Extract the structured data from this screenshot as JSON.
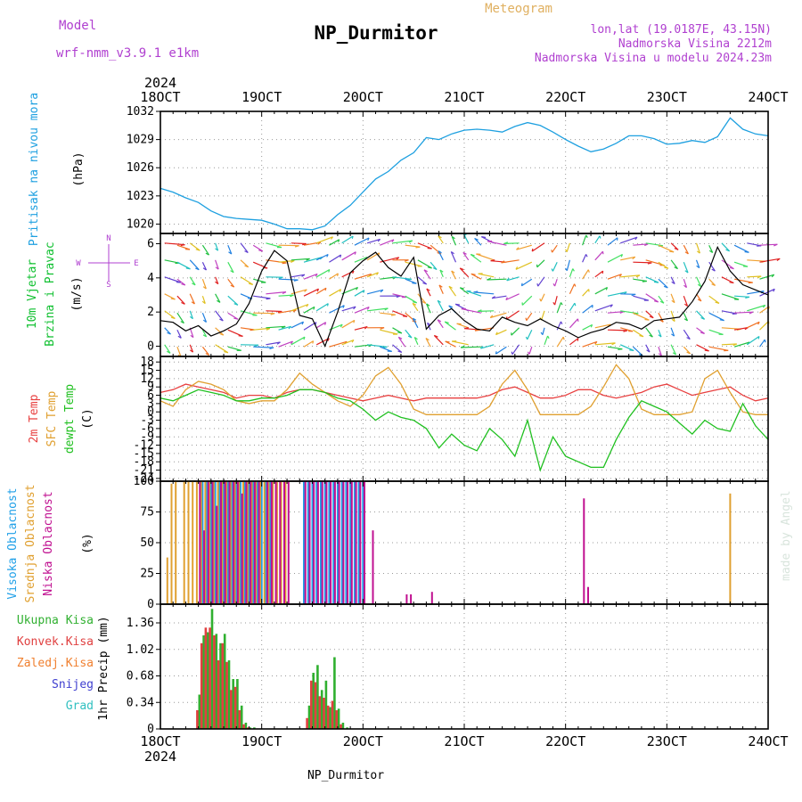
{
  "header": {
    "model_label": "Model",
    "model_name": "wrf-nmm_v3.9.1 e1km",
    "title": "NP_Durmitor",
    "subtitle": "Meteogram",
    "coords": "lon,lat (19.0187E, 43.15N)",
    "altitude": "Nadmorska Visina 2212m",
    "model_altitude": "Nadmorska Visina u modelu 2024.23m",
    "footer": "NP_Durmitor",
    "watermark": "made by Angel"
  },
  "colors": {
    "pressure": "#1ea0e0",
    "wind_title": "#10c030",
    "temp2m": "#e84040",
    "sfctemp": "#e0a030",
    "dewpt": "#20c020",
    "high_cloud": "#20a0e8",
    "mid_cloud": "#e0a030",
    "low_cloud": "#c01090",
    "total_precip": "#30b030",
    "conv_precip": "#e04040",
    "frozen": "#f08030",
    "snow": "#4040d0",
    "graupel": "#30c0c0",
    "header_purple": "#b040d0",
    "subtitle_orange": "#e0b060"
  },
  "chart_data": [
    {
      "type": "line",
      "panel": "pressure",
      "ylabel": [
        "Pritisak na nivou mora",
        "(hPa)"
      ],
      "yticks": [
        1020,
        1023,
        1026,
        1029,
        1032
      ],
      "ylim": [
        1019,
        1032
      ],
      "x_start_label": "2024",
      "xticks": [
        "18OCT",
        "19OCT",
        "20OCT",
        "21OCT",
        "22OCT",
        "23OCT",
        "24OCT"
      ],
      "x_hours": [
        0,
        3,
        6,
        9,
        12,
        15,
        18,
        21,
        24,
        27,
        30,
        33,
        36,
        39,
        42,
        45,
        48,
        51,
        54,
        57,
        60,
        63,
        66,
        69,
        72,
        75,
        78,
        81,
        84,
        87,
        90,
        93,
        96,
        99,
        102,
        105,
        108,
        111,
        114,
        117,
        120,
        123,
        126,
        129,
        132,
        135,
        138,
        141,
        144
      ],
      "values": [
        1023.8,
        1023.4,
        1022.8,
        1022.3,
        1021.4,
        1020.8,
        1020.6,
        1020.5,
        1020.4,
        1020.0,
        1019.5,
        1019.5,
        1019.4,
        1019.8,
        1021.0,
        1022.0,
        1023.4,
        1024.8,
        1025.6,
        1026.8,
        1027.6,
        1029.2,
        1029.0,
        1029.6,
        1030.0,
        1030.1,
        1030.0,
        1029.8,
        1030.4,
        1030.8,
        1030.5,
        1029.8,
        1029.0,
        1028.3,
        1027.7,
        1028.0,
        1028.6,
        1029.4,
        1029.4,
        1029.1,
        1028.5,
        1028.6,
        1028.9,
        1028.7,
        1029.3,
        1031.3,
        1030.1,
        1029.6,
        1029.4
      ]
    },
    {
      "type": "line",
      "panel": "wind",
      "ylabel": [
        "10m Vjetar",
        "Brzina i Pravac",
        "(m/s)"
      ],
      "compass": {
        "n": "N",
        "e": "E",
        "s": "S",
        "w": "W"
      },
      "yticks": [
        0,
        2,
        4,
        6
      ],
      "ylim": [
        -0.6,
        6.6
      ],
      "x_hours": [
        0,
        3,
        6,
        9,
        12,
        15,
        18,
        21,
        24,
        27,
        30,
        33,
        36,
        39,
        42,
        45,
        48,
        51,
        54,
        57,
        60,
        63,
        66,
        69,
        72,
        75,
        78,
        81,
        84,
        87,
        90,
        93,
        96,
        99,
        102,
        105,
        108,
        111,
        114,
        117,
        120,
        123,
        126,
        129,
        132,
        135,
        138,
        141,
        144
      ],
      "speed": [
        1.5,
        1.4,
        0.9,
        1.2,
        0.6,
        0.9,
        1.3,
        2.5,
        4.4,
        5.6,
        5.0,
        1.8,
        1.6,
        0.0,
        2.0,
        4.3,
        5.0,
        5.5,
        4.6,
        4.1,
        5.2,
        1.0,
        1.8,
        2.2,
        1.5,
        1.0,
        0.9,
        1.7,
        1.4,
        1.2,
        1.6,
        1.2,
        0.9,
        0.5,
        0.8,
        1.0,
        1.4,
        1.3,
        1.0,
        1.5,
        1.6,
        1.7,
        2.6,
        3.8,
        5.8,
        4.4,
        3.6,
        3.3,
        3.0
      ]
    },
    {
      "type": "line",
      "panel": "temperature",
      "ylabel": [
        "2m Temp",
        "SFC Temp",
        "dewpt Temp",
        "(C)"
      ],
      "yticks": [
        18,
        15,
        12,
        9,
        6,
        3,
        0,
        -3,
        -6,
        -9,
        -12,
        -15,
        -18,
        -21,
        -24
      ],
      "ylim": [
        -25,
        20
      ],
      "x_hours": [
        0,
        3,
        6,
        9,
        12,
        15,
        18,
        21,
        24,
        27,
        30,
        33,
        36,
        39,
        42,
        45,
        48,
        51,
        54,
        57,
        60,
        63,
        66,
        69,
        72,
        75,
        78,
        81,
        84,
        87,
        90,
        93,
        96,
        99,
        102,
        105,
        108,
        111,
        114,
        117,
        120,
        123,
        126,
        129,
        132,
        135,
        138,
        141,
        144
      ],
      "series": [
        {
          "name": "2m Temp",
          "values": [
            7,
            8,
            10,
            9,
            8,
            7,
            5,
            6,
            6,
            5,
            7,
            8,
            8,
            7,
            6,
            5,
            4,
            5,
            6,
            5,
            4,
            5,
            5,
            5,
            5,
            5,
            6,
            8,
            9,
            7,
            5,
            5,
            6,
            8,
            8,
            6,
            5,
            6,
            7,
            9,
            10,
            8,
            6,
            7,
            8,
            9,
            6,
            4,
            5
          ]
        },
        {
          "name": "SFC Temp",
          "values": [
            4,
            2,
            8,
            11,
            10,
            8,
            4,
            3,
            4,
            4,
            8,
            14,
            10,
            7,
            4,
            2,
            6,
            13,
            16,
            10,
            1,
            -1,
            -1,
            -1,
            -1,
            -1,
            2,
            10,
            15,
            8,
            -1,
            -1,
            -1,
            -1,
            2,
            9,
            17,
            12,
            1,
            -1,
            -1,
            -1,
            0,
            12,
            15,
            7,
            0,
            -1,
            -1
          ]
        },
        {
          "name": "dewpt Temp",
          "values": [
            5,
            4,
            6,
            8,
            7,
            6,
            4,
            4,
            5,
            5,
            6,
            8,
            8,
            7,
            5,
            4,
            1,
            -3,
            0,
            -2,
            -3,
            -6,
            -13,
            -8,
            -12,
            -14,
            -6,
            -10,
            -16,
            -3,
            -21,
            -9,
            -16,
            -18,
            -20,
            -20,
            -10,
            -2,
            4,
            2,
            0,
            -4,
            -8,
            -3,
            -6,
            -7,
            3,
            -5,
            -10
          ]
        }
      ]
    },
    {
      "type": "bar",
      "panel": "clouds",
      "ylabel": [
        "Visoka Oblacnost",
        "Srednja Oblacnost",
        "Niska Oblacnost",
        "(%)"
      ],
      "yticks": [
        0,
        25,
        50,
        75,
        100
      ],
      "ylim": [
        0,
        100
      ],
      "x_hours": [
        2,
        3,
        4,
        6,
        7,
        8,
        9,
        10,
        11,
        12,
        13,
        14,
        15,
        16,
        17,
        18,
        19,
        20,
        21,
        22,
        23,
        24,
        25,
        26,
        27,
        28,
        29,
        30,
        34,
        35,
        36,
        37,
        38,
        39,
        40,
        41,
        42,
        43,
        44,
        45,
        46,
        47,
        48,
        50,
        58,
        59,
        64,
        100,
        101
      ],
      "series": [
        {
          "name": "Visoka Oblacnost",
          "values": [
            0,
            0,
            0,
            0,
            0,
            0,
            0,
            100,
            100,
            100,
            100,
            100,
            100,
            100,
            100,
            100,
            100,
            100,
            100,
            100,
            100,
            100,
            100,
            100,
            0,
            0,
            0,
            0,
            100,
            100,
            100,
            100,
            100,
            100,
            100,
            100,
            100,
            100,
            100,
            100,
            100,
            100,
            100,
            0,
            0,
            0,
            0,
            0,
            0
          ]
        },
        {
          "name": "Srednja Oblacnost",
          "values": [
            38,
            98,
            100,
            100,
            100,
            100,
            100,
            100,
            100,
            100,
            100,
            100,
            100,
            100,
            100,
            100,
            100,
            100,
            100,
            100,
            100,
            100,
            100,
            100,
            100,
            100,
            100,
            100,
            0,
            0,
            0,
            0,
            0,
            0,
            0,
            0,
            0,
            0,
            0,
            0,
            0,
            0,
            0,
            0,
            0,
            0,
            0,
            0,
            0
          ]
        },
        {
          "name": "Niska Oblacnost",
          "values": [
            0,
            0,
            0,
            0,
            0,
            0,
            100,
            60,
            100,
            100,
            80,
            100,
            100,
            100,
            100,
            100,
            90,
            100,
            100,
            100,
            100,
            0,
            100,
            100,
            100,
            100,
            100,
            100,
            100,
            100,
            100,
            100,
            100,
            100,
            100,
            100,
            100,
            100,
            100,
            100,
            100,
            100,
            100,
            60,
            8,
            8,
            10,
            86,
            14
          ]
        }
      ],
      "extra": [
        {
          "series": "Srednja Oblacnost",
          "x_hour": 135,
          "value": 90
        }
      ]
    },
    {
      "type": "bar",
      "panel": "precip",
      "ylabel": [
        "1hr Precip (mm)"
      ],
      "legend": [
        "Ukupna Kisa",
        "Konvek.Kisa",
        "Zaledj.Kisa",
        "Snijeg",
        "Grad"
      ],
      "yticks": [
        0,
        0.34,
        0.68,
        1.02,
        1.36
      ],
      "ytick_labels": [
        "0",
        "0.34",
        "0.68",
        "1.02",
        "1.36"
      ],
      "ylim": [
        0,
        1.6
      ],
      "x_end_labels": [
        "18OCT",
        "2024",
        "24OCT"
      ],
      "xticks": [
        "18OCT",
        "19OCT",
        "20OCT",
        "21OCT",
        "22OCT",
        "23OCT",
        "24OCT"
      ],
      "x_hours": [
        9,
        10,
        11,
        12,
        13,
        14,
        15,
        16,
        17,
        18,
        19,
        20,
        21,
        22,
        35,
        36,
        37,
        38,
        39,
        40,
        41,
        42,
        43,
        44
      ],
      "series": [
        {
          "name": "Ukupna Kisa",
          "values": [
            0.44,
            1.2,
            1.24,
            1.54,
            1.22,
            1.1,
            1.22,
            0.88,
            0.64,
            0.64,
            0.3,
            0.08,
            0.02,
            0.02,
            0.3,
            0.72,
            0.82,
            0.5,
            0.62,
            0.28,
            0.92,
            0.26,
            0.08,
            0.02
          ]
        },
        {
          "name": "Konvek.Kisa",
          "values": [
            0.24,
            1.1,
            1.3,
            1.3,
            1.2,
            0.88,
            1.1,
            0.86,
            0.5,
            0.54,
            0.24,
            0.06,
            0.02,
            0.0,
            0.14,
            0.62,
            0.6,
            0.42,
            0.4,
            0.3,
            0.36,
            0.24,
            0.06,
            0.0
          ]
        }
      ]
    }
  ]
}
